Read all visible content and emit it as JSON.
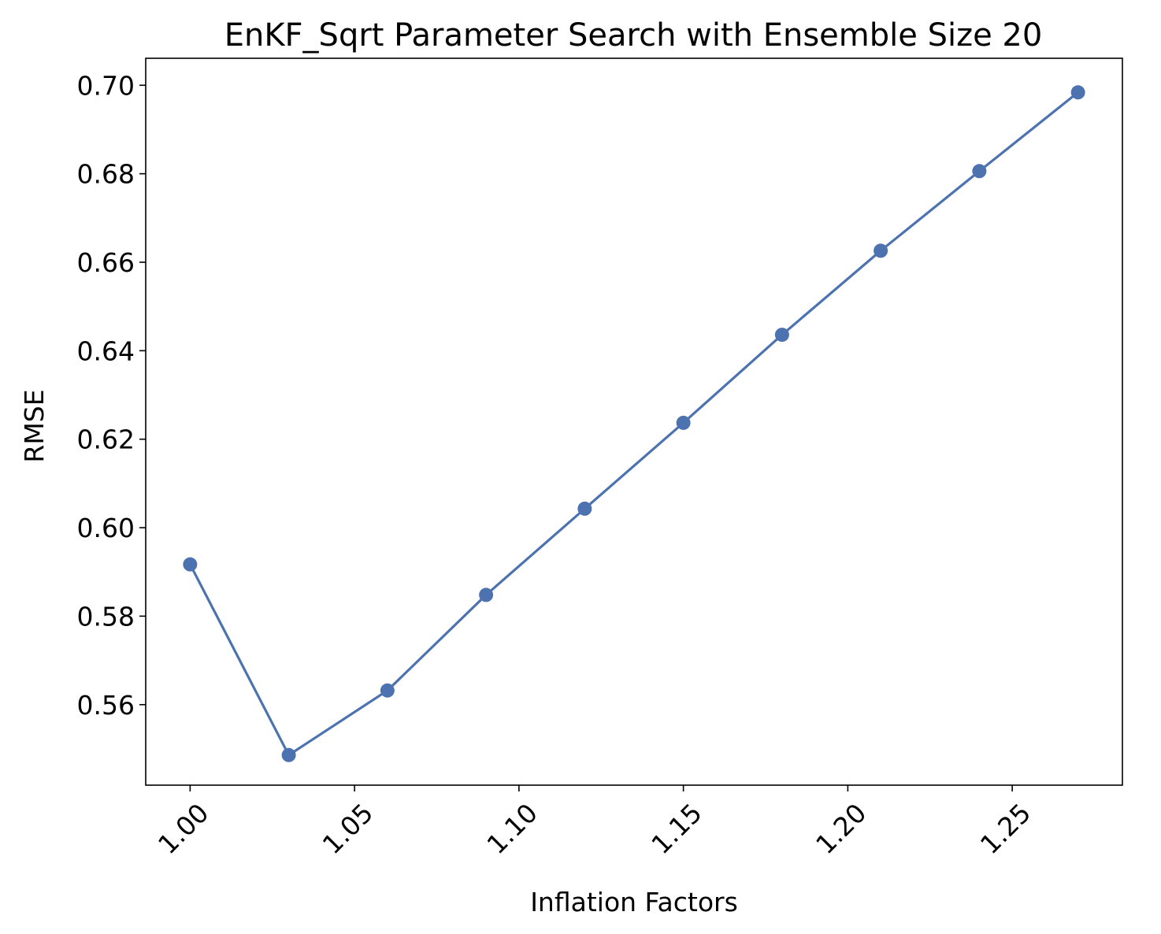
{
  "chart_data": {
    "type": "line",
    "title": "EnKF_Sqrt Parameter Search with Ensemble Size 20",
    "xlabel": "Inflation Factors",
    "ylabel": "RMSE",
    "x": [
      1.0,
      1.03,
      1.06,
      1.09,
      1.12,
      1.15,
      1.18,
      1.21,
      1.24,
      1.27
    ],
    "series": [
      {
        "values": [
          0.5917,
          0.5486,
          0.5632,
          0.5848,
          0.6043,
          0.6237,
          0.6436,
          0.6626,
          0.6806,
          0.6984
        ]
      }
    ],
    "xlim": [
      0.9865,
      1.2835
    ],
    "ylim": [
      0.5418,
      0.7061
    ],
    "xticks": [
      1.0,
      1.05,
      1.1,
      1.15,
      1.2,
      1.25
    ],
    "xtick_labels": [
      "1.00",
      "1.05",
      "1.10",
      "1.15",
      "1.20",
      "1.25"
    ],
    "xtick_rotation": 45,
    "yticks": [
      0.56,
      0.58,
      0.6,
      0.62,
      0.64,
      0.66,
      0.68,
      0.7
    ],
    "ytick_labels": [
      "0.56",
      "0.58",
      "0.60",
      "0.62",
      "0.64",
      "0.66",
      "0.68",
      "0.70"
    ],
    "grid": false,
    "legend": false,
    "marker": "circle",
    "line_color": "#4c72b0"
  }
}
